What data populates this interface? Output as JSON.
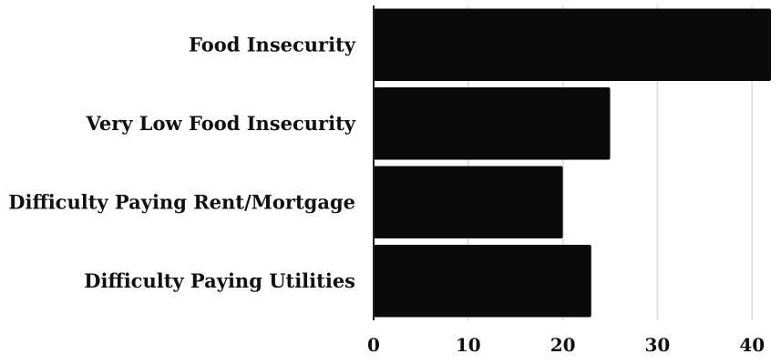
{
  "chart_data": {
    "type": "bar",
    "orientation": "horizontal",
    "categories": [
      "Food Insecurity",
      "Very Low Food Insecurity",
      "Difficulty Paying Rent/Mortgage",
      "Difficulty Paying Utilities"
    ],
    "values": [
      42,
      25,
      20,
      23
    ],
    "xlim": [
      0,
      42
    ],
    "xticks": [
      "0",
      "10",
      "20",
      "30",
      "40"
    ],
    "grid": true,
    "bar_color": "#0a0a0a",
    "title": "",
    "xlabel": "",
    "ylabel": ""
  }
}
